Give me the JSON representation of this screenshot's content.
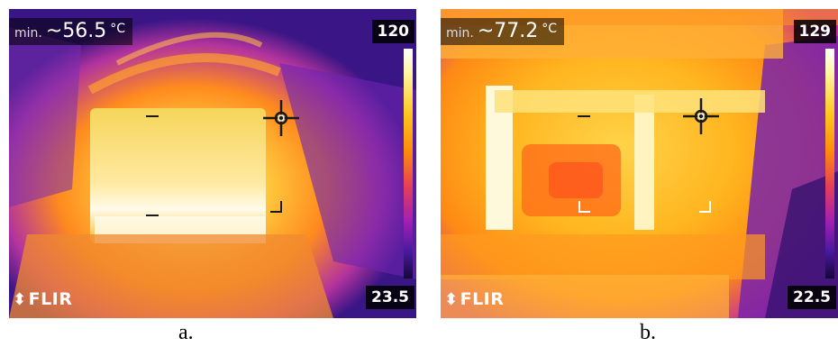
{
  "panels": [
    {
      "id": "a",
      "min_label": "min.",
      "min_value": "~56.5",
      "unit": "°C",
      "scale_max": "120",
      "scale_min": "23.5",
      "logo": "FLIR",
      "caption": "a."
    },
    {
      "id": "b",
      "min_label": "min.",
      "min_value": "~77.2",
      "unit": "°C",
      "scale_max": "129",
      "scale_min": "22.5",
      "logo": "FLIR",
      "caption": "b."
    }
  ],
  "palette": {
    "hot": "#fff6c8",
    "warm": "#ffc81e",
    "mid": "#ff8a0a",
    "cool": "#b12fb8",
    "cold": "#2a1470"
  },
  "icons": [
    "flir-logo-icon",
    "crosshair-icon",
    "corner-marker-icon"
  ]
}
